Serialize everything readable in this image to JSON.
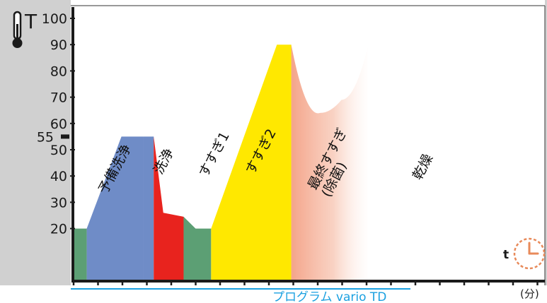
{
  "chart_data": {
    "type": "area",
    "ylabel": "T",
    "xlabel": "t",
    "x_unit": "(分)",
    "y_ticks": [
      20,
      30,
      40,
      50,
      60,
      70,
      80,
      90,
      100
    ],
    "highlight_tick": 90,
    "highlight_color": "#e8231e",
    "side_marker": 55,
    "ylim": [
      0,
      100
    ],
    "grid": false,
    "program_label": "プログラム vario TD",
    "program_color": "#1aa0e0",
    "phases": [
      {
        "name": "",
        "color": "#5c9f74",
        "points": [
          [
            0,
            20
          ],
          [
            0.55,
            20
          ]
        ]
      },
      {
        "name": "予備洗浄",
        "color": "#6f8cc7",
        "points": [
          [
            0.55,
            20
          ],
          [
            2,
            55
          ],
          [
            2.9,
            55
          ]
        ]
      },
      {
        "name": "洗浄",
        "color": "#6f8cc7",
        "points": [
          [
            2.9,
            55
          ],
          [
            3.35,
            55
          ]
        ]
      },
      {
        "name": "すすぎ1",
        "color": "#e8231e",
        "points": [
          [
            3.35,
            55
          ],
          [
            3.75,
            26
          ],
          [
            4.6,
            24.5
          ]
        ]
      },
      {
        "name": "すすぎ2",
        "color": "#5c9f74",
        "points": [
          [
            4.6,
            24.5
          ],
          [
            5.1,
            20
          ],
          [
            5.75,
            20
          ]
        ]
      },
      {
        "name": "最終すすぎ\n(除菌)",
        "color": "#ffe800",
        "points": [
          [
            5.75,
            20
          ],
          [
            8.5,
            90
          ],
          [
            9.1,
            90
          ]
        ]
      },
      {
        "name": "乾燥",
        "color": "#f4a48a",
        "points": [
          [
            9.1,
            90
          ],
          [
            10.3,
            64
          ],
          [
            11.2,
            69
          ],
          [
            12.3,
            89
          ]
        ]
      }
    ],
    "icons": {
      "thermometer": "thermometer-icon",
      "clock": "clock-icon"
    }
  }
}
